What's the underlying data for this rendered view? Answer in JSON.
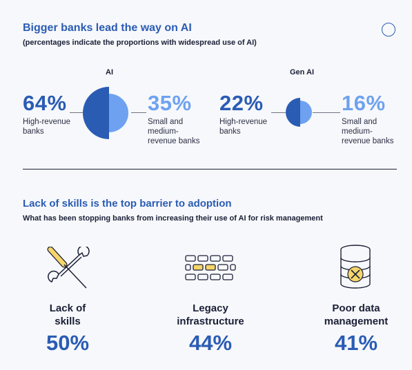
{
  "section1": {
    "title": "Bigger banks lead the way on AI",
    "subtitle": "(percentages indicate the proportions with widespread use of AI)",
    "groups": [
      {
        "label": "AI",
        "left": {
          "pct": "64%",
          "desc": [
            "High-revenue",
            "banks"
          ],
          "value": 64
        },
        "right": {
          "pct": "35%",
          "desc": [
            "Small and",
            "medium-",
            "revenue banks"
          ],
          "value": 35
        }
      },
      {
        "label": "Gen AI",
        "left": {
          "pct": "22%",
          "desc": [
            "High-revenue",
            "banks"
          ],
          "value": 22
        },
        "right": {
          "pct": "16%",
          "desc": [
            "Small and",
            "medium-",
            "revenue banks"
          ],
          "value": 16
        }
      }
    ]
  },
  "section2": {
    "title": "Lack of skills is the top barrier to adoption",
    "subtitle": "What has been stopping banks from increasing their use of AI for risk management",
    "items": [
      {
        "icon": "tools-icon",
        "label_lines": [
          "Lack of",
          "skills"
        ],
        "pct": "50%"
      },
      {
        "icon": "brick-wall-icon",
        "label_lines": [
          "Legacy",
          "infrastructure"
        ],
        "pct": "44%"
      },
      {
        "icon": "database-icon",
        "label_lines": [
          "Poor data",
          "management"
        ],
        "pct": "41%"
      }
    ]
  },
  "colors": {
    "dark_blue": "#2a5cb4",
    "mid_blue": "#3f6fd0",
    "light_blue": "#6ea2f0",
    "yellow": "#f6d56a",
    "text": "#1a1f36"
  }
}
